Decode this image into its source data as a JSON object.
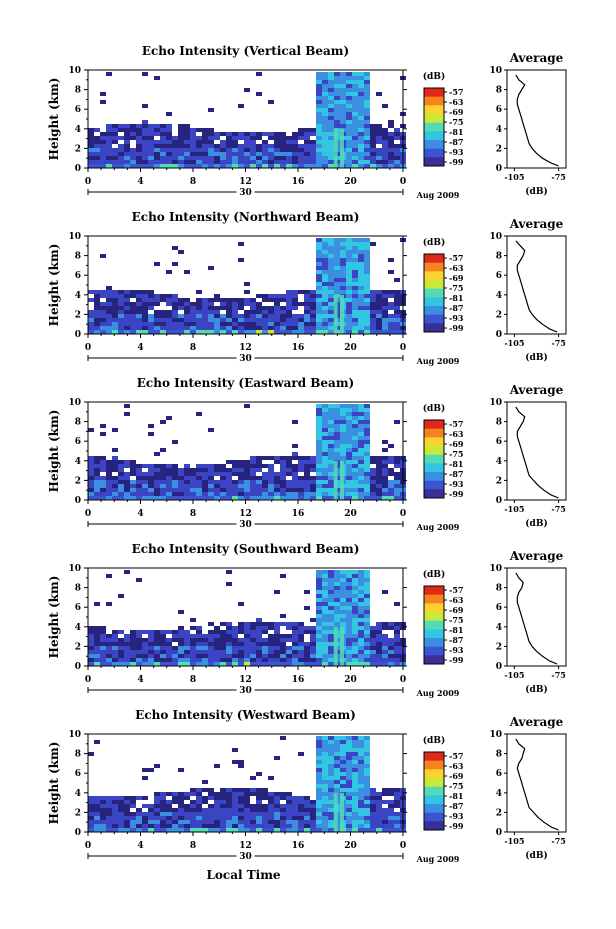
{
  "figure": {
    "xlabel": "Local Time",
    "date_label": "Aug 2009",
    "day_label": "30",
    "colorbar_unit": "(dB)",
    "average_title": "Average",
    "average_xlabel": "(dB)",
    "main_ylabel": "Height (km)"
  },
  "colors": {
    "colormap": [
      "#3a2f96",
      "#3b55d2",
      "#3a8fe0",
      "#33c6e3",
      "#52dcb4",
      "#c7ea3a",
      "#fbd230",
      "#f5841f",
      "#e02a19"
    ],
    "echo_deep": "#26247e",
    "echo_mid": "#3b45c4",
    "echo_light": "#5b9be6"
  },
  "chart_data": [
    {
      "type": "heatmap",
      "title": "Echo Intensity (Vertical Beam)",
      "ylabel": "Height (km)",
      "xlabel": "Local Time",
      "x_ticks": [
        "0",
        "4",
        "8",
        "12",
        "16",
        "20",
        "0"
      ],
      "y_ticks": [
        "0",
        "2",
        "4",
        "6",
        "8",
        "10"
      ],
      "xlim": [
        0,
        24
      ],
      "ylim": [
        0,
        10
      ],
      "colorbar": {
        "unit": "(dB)",
        "ticks": [
          "-57",
          "-63",
          "-69",
          "-75",
          "-81",
          "-87",
          "-93",
          "-99"
        ]
      },
      "average": {
        "title": "Average",
        "xlabel": "(dB)",
        "x_ticks": [
          "-105",
          "-75"
        ],
        "y_ticks": [
          "0",
          "2",
          "4",
          "6",
          "8",
          "10"
        ],
        "height": [
          0.2,
          0.5,
          1,
          1.5,
          2,
          2.5,
          3,
          3.5,
          4,
          4.5,
          5,
          5.5,
          6,
          6.5,
          7,
          7.5,
          8,
          8.5,
          9,
          9.5
        ],
        "db": [
          -75,
          -80,
          -86,
          -90,
          -93,
          -95,
          -96,
          -97,
          -98,
          -99,
          -100,
          -101,
          -102,
          -103,
          -103,
          -102,
          -100,
          -98,
          -102,
          -104
        ]
      }
    },
    {
      "type": "heatmap",
      "title": "Echo Intensity (Northward Beam)",
      "ylabel": "Height (km)",
      "xlabel": "Local Time",
      "x_ticks": [
        "0",
        "4",
        "8",
        "12",
        "16",
        "20",
        "0"
      ],
      "y_ticks": [
        "0",
        "2",
        "4",
        "6",
        "8",
        "10"
      ],
      "xlim": [
        0,
        24
      ],
      "ylim": [
        0,
        10
      ],
      "colorbar": {
        "unit": "(dB)",
        "ticks": [
          "-57",
          "-63",
          "-69",
          "-75",
          "-81",
          "-87",
          "-93",
          "-99"
        ]
      },
      "average": {
        "title": "Average",
        "xlabel": "(dB)",
        "x_ticks": [
          "-105",
          "-75"
        ],
        "y_ticks": [
          "0",
          "2",
          "4",
          "6",
          "8",
          "10"
        ],
        "height": [
          0.2,
          0.5,
          1,
          1.5,
          2,
          2.5,
          3,
          3.5,
          4,
          4.5,
          5,
          5.5,
          6,
          6.5,
          7,
          7.5,
          8,
          8.5,
          9,
          9.5
        ],
        "db": [
          -76,
          -81,
          -86,
          -90,
          -93,
          -95,
          -96,
          -97,
          -98,
          -99,
          -100,
          -101,
          -102,
          -103,
          -103,
          -101,
          -99,
          -98,
          -101,
          -104
        ]
      }
    },
    {
      "type": "heatmap",
      "title": "Echo Intensity (Eastward Beam)",
      "ylabel": "Height (km)",
      "xlabel": "Local Time",
      "x_ticks": [
        "0",
        "4",
        "8",
        "12",
        "16",
        "20",
        "0"
      ],
      "y_ticks": [
        "0",
        "2",
        "4",
        "6",
        "8",
        "10"
      ],
      "xlim": [
        0,
        24
      ],
      "ylim": [
        0,
        10
      ],
      "colorbar": {
        "unit": "(dB)",
        "ticks": [
          "-57",
          "-63",
          "-69",
          "-75",
          "-81",
          "-87",
          "-93",
          "-99"
        ]
      },
      "average": {
        "title": "Average",
        "xlabel": "(dB)",
        "x_ticks": [
          "-105",
          "-75"
        ],
        "y_ticks": [
          "0",
          "2",
          "4",
          "6",
          "8",
          "10"
        ],
        "height": [
          0.2,
          0.5,
          1,
          1.5,
          2,
          2.5,
          3,
          3.5,
          4,
          4.5,
          5,
          5.5,
          6,
          6.5,
          7,
          7.5,
          8,
          8.5,
          9,
          9.5
        ],
        "db": [
          -75,
          -80,
          -85,
          -89,
          -92,
          -95,
          -96,
          -97,
          -98,
          -99,
          -100,
          -101,
          -102,
          -103,
          -103,
          -101,
          -99,
          -98,
          -102,
          -104
        ]
      }
    },
    {
      "type": "heatmap",
      "title": "Echo Intensity (Southward Beam)",
      "ylabel": "Height (km)",
      "xlabel": "Local Time",
      "x_ticks": [
        "0",
        "4",
        "8",
        "12",
        "16",
        "20",
        "0"
      ],
      "y_ticks": [
        "0",
        "2",
        "4",
        "6",
        "8",
        "10"
      ],
      "xlim": [
        0,
        24
      ],
      "ylim": [
        0,
        10
      ],
      "colorbar": {
        "unit": "(dB)",
        "ticks": [
          "-57",
          "-63",
          "-69",
          "-75",
          "-81",
          "-87",
          "-93",
          "-99"
        ]
      },
      "average": {
        "title": "Average",
        "xlabel": "(dB)",
        "x_ticks": [
          "-105",
          "-75"
        ],
        "y_ticks": [
          "0",
          "2",
          "4",
          "6",
          "8",
          "10"
        ],
        "height": [
          0.2,
          0.5,
          1,
          1.5,
          2,
          2.5,
          3,
          3.5,
          4,
          4.5,
          5,
          5.5,
          6,
          6.5,
          7,
          7.5,
          8,
          8.5,
          9,
          9.5
        ],
        "db": [
          -76,
          -81,
          -86,
          -90,
          -93,
          -95,
          -96,
          -97,
          -98,
          -99,
          -100,
          -101,
          -102,
          -103,
          -103,
          -102,
          -100,
          -99,
          -102,
          -104
        ]
      }
    },
    {
      "type": "heatmap",
      "title": "Echo Intensity (Westward Beam)",
      "ylabel": "Height (km)",
      "xlabel": "Local Time",
      "x_ticks": [
        "0",
        "4",
        "8",
        "12",
        "16",
        "20",
        "0"
      ],
      "y_ticks": [
        "0",
        "2",
        "4",
        "6",
        "8",
        "10"
      ],
      "xlim": [
        0,
        24
      ],
      "ylim": [
        0,
        10
      ],
      "colorbar": {
        "unit": "(dB)",
        "ticks": [
          "-57",
          "-63",
          "-69",
          "-75",
          "-81",
          "-87",
          "-93",
          "-99"
        ]
      },
      "average": {
        "title": "Average",
        "xlabel": "(dB)",
        "x_ticks": [
          "-105",
          "-75"
        ],
        "y_ticks": [
          "0",
          "2",
          "4",
          "6",
          "8",
          "10"
        ],
        "height": [
          0.2,
          0.5,
          1,
          1.5,
          2,
          2.5,
          3,
          3.5,
          4,
          4.5,
          5,
          5.5,
          6,
          6.5,
          7,
          7.5,
          8,
          8.5,
          9,
          9.5
        ],
        "db": [
          -75,
          -80,
          -85,
          -89,
          -92,
          -95,
          -96,
          -97,
          -98,
          -99,
          -100,
          -101,
          -102,
          -103,
          -102,
          -100,
          -99,
          -98,
          -102,
          -104
        ]
      }
    }
  ]
}
